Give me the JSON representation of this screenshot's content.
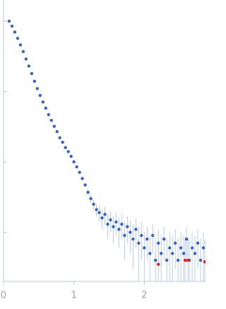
{
  "chart_data": {
    "type": "scatter",
    "log_y": true,
    "xlim": [
      0,
      2.87
    ],
    "xticks": [
      0,
      1,
      2
    ],
    "ylim": [
      0.0002,
      2
    ],
    "yticks": [
      0.001,
      0.01,
      0.1,
      1
    ],
    "series": [
      {
        "color": "#3a63b8",
        "error_color": "#a9bfe3",
        "x": [
          0.08,
          0.12,
          0.16,
          0.2,
          0.24,
          0.28,
          0.32,
          0.36,
          0.4,
          0.44,
          0.48,
          0.52,
          0.56,
          0.6,
          0.64,
          0.68,
          0.72,
          0.76,
          0.8,
          0.84,
          0.88,
          0.92,
          0.96,
          1.0,
          1.04,
          1.08,
          1.12,
          1.16,
          1.2,
          1.24,
          1.28,
          1.32,
          1.36,
          1.4,
          1.44,
          1.48,
          1.52,
          1.56,
          1.6,
          1.64,
          1.68,
          1.72,
          1.76,
          1.8,
          1.84,
          1.88,
          1.92,
          1.96,
          2.0,
          2.04,
          2.08,
          2.12,
          2.16,
          2.2,
          2.24,
          2.28,
          2.32,
          2.36,
          2.4,
          2.44,
          2.48,
          2.52,
          2.56,
          2.6,
          2.64,
          2.68,
          2.72,
          2.76,
          2.8,
          2.84
        ],
        "values": [
          1.0,
          0.85,
          0.7,
          0.57,
          0.46,
          0.37,
          0.29,
          0.23,
          0.18,
          0.14,
          0.11,
          0.088,
          0.071,
          0.058,
          0.047,
          0.039,
          0.032,
          0.027,
          0.022,
          0.019,
          0.016,
          0.014,
          0.012,
          0.01,
          0.0085,
          0.0071,
          0.0058,
          0.0047,
          0.0037,
          0.003,
          0.0025,
          0.0021,
          0.0019,
          0.0016,
          0.0018,
          0.0013,
          0.0015,
          0.0012,
          0.0014,
          0.0011,
          0.0013,
          0.0009,
          0.0012,
          0.001,
          0.0008,
          0.0011,
          0.0007,
          0.0009,
          0.0006,
          0.0008,
          0.0005,
          0.0009,
          0.0004,
          0.0007,
          0.0005,
          0.0008,
          0.0004,
          0.0006,
          0.0005,
          0.0007,
          0.0004,
          0.0006,
          0.0005,
          0.0008,
          0.0004,
          0.0006,
          0.0005,
          0.0007,
          0.0004,
          0.0006
        ],
        "errors": [
          0.01,
          0.008,
          0.007,
          0.005,
          0.004,
          0.003,
          0.003,
          0.002,
          0.002,
          0.0015,
          0.0012,
          0.001,
          0.0008,
          0.0007,
          0.0006,
          0.0005,
          0.0004,
          0.0004,
          0.0003,
          0.0003,
          0.0003,
          0.0003,
          0.0003,
          0.0003,
          0.0003,
          0.0003,
          0.0003,
          0.0003,
          0.0004,
          0.0004,
          0.0004,
          0.0004,
          0.0005,
          0.0005,
          0.0005,
          0.0005,
          0.0005,
          0.0005,
          0.0005,
          0.0005,
          0.0005,
          0.0005,
          0.0005,
          0.0005,
          0.0005,
          0.0005,
          0.0005,
          0.0005,
          0.0004,
          0.0004,
          0.0004,
          0.0004,
          0.0004,
          0.0004,
          0.0004,
          0.0004,
          0.0004,
          0.0004,
          0.0004,
          0.0004,
          0.0004,
          0.0004,
          0.0004,
          0.0004,
          0.0004,
          0.0004,
          0.0004,
          0.0004,
          0.0004,
          0.0004
        ]
      },
      {
        "color": "#e0201a",
        "error_color": "#a9bfe3",
        "x": [
          2.2,
          2.58,
          2.62,
          2.86
        ],
        "values": [
          0.00035,
          0.0004,
          0.0004,
          0.00038
        ],
        "errors": [
          0.0004,
          0.0004,
          0.0004,
          0.0004
        ]
      }
    ]
  }
}
